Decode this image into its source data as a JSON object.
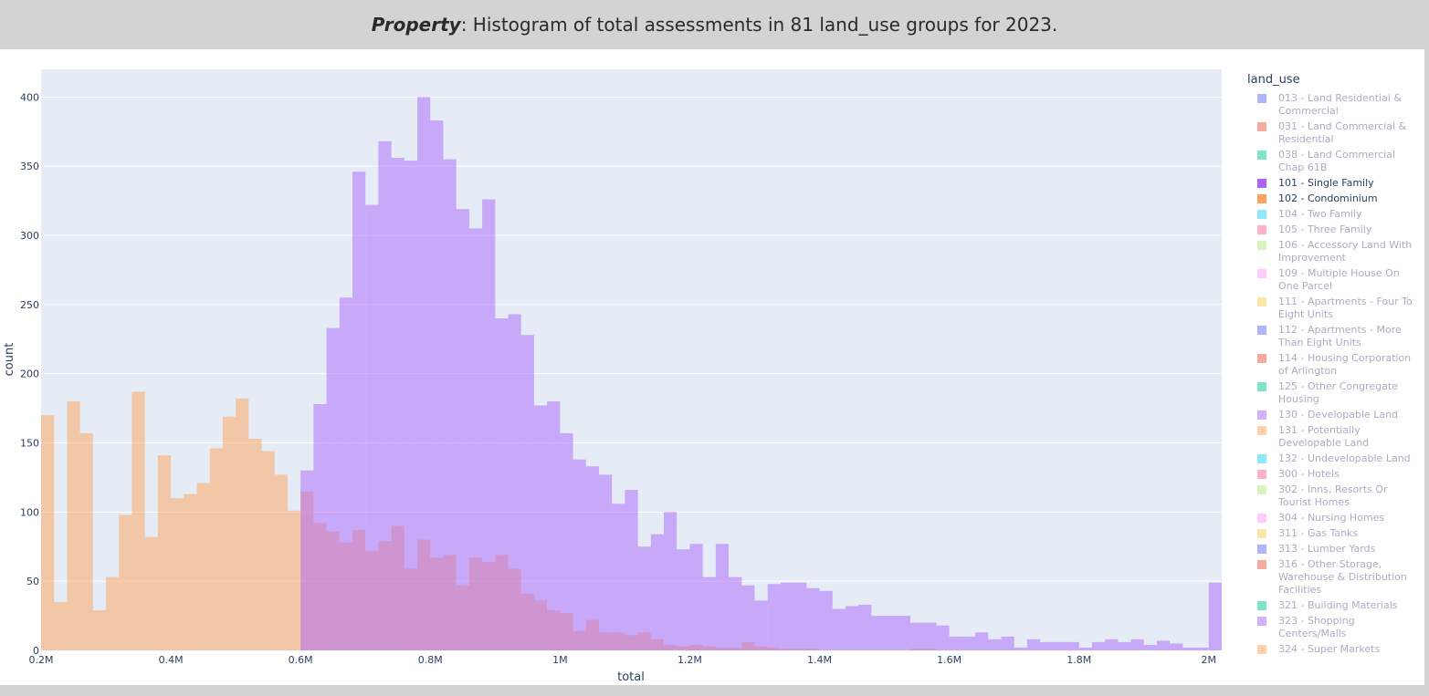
{
  "title": {
    "strong": "Property",
    "rest": ": Histogram of total assessments in 81 land_use groups for 2023."
  },
  "chart_data": {
    "type": "bar",
    "barmode": "overlay",
    "xlabel": "total",
    "ylabel": "count",
    "xlim": [
      200000,
      2020000
    ],
    "ylim": [
      0,
      420
    ],
    "bin_width": 20000,
    "x_ticks": [
      {
        "value": 200000,
        "label": "0.2M"
      },
      {
        "value": 400000,
        "label": "0.4M"
      },
      {
        "value": 600000,
        "label": "0.6M"
      },
      {
        "value": 800000,
        "label": "0.8M"
      },
      {
        "value": 1000000,
        "label": "1M"
      },
      {
        "value": 1200000,
        "label": "1.2M"
      },
      {
        "value": 1400000,
        "label": "1.4M"
      },
      {
        "value": 1600000,
        "label": "1.6M"
      },
      {
        "value": 1800000,
        "label": "1.8M"
      },
      {
        "value": 2000000,
        "label": "2M"
      }
    ],
    "y_ticks": [
      0,
      50,
      100,
      150,
      200,
      250,
      300,
      350,
      400
    ],
    "grid": true,
    "legend": {
      "title": "land_use",
      "placement": "right"
    },
    "series": [
      {
        "name": "101 - Single Family",
        "color": "#ab63fa",
        "bin_start": 600000,
        "values": [
          130,
          178,
          233,
          255,
          346,
          322,
          368,
          356,
          354,
          400,
          383,
          355,
          319,
          305,
          326,
          240,
          243,
          228,
          177,
          180,
          157,
          138,
          133,
          127,
          106,
          116,
          75,
          84,
          100,
          73,
          77,
          53,
          77,
          53,
          47,
          36,
          48,
          49,
          49,
          45,
          43,
          30,
          32,
          33,
          25,
          25,
          25,
          20,
          20,
          18,
          10,
          10,
          13,
          8,
          10,
          2,
          8,
          6,
          6,
          6,
          2,
          6,
          8,
          6,
          8,
          4,
          7,
          5,
          2,
          2,
          49
        ]
      },
      {
        "name": "102 - Condominium",
        "color": "#ffa15a",
        "bin_start": 200000,
        "values": [
          170,
          35,
          180,
          157,
          29,
          53,
          98,
          187,
          82,
          141,
          110,
          113,
          121,
          146,
          169,
          182,
          153,
          144,
          127,
          101,
          115,
          92,
          86,
          78,
          87,
          72,
          79,
          90,
          59,
          80,
          67,
          69,
          47,
          67,
          64,
          69,
          59,
          41,
          36,
          29,
          27,
          14,
          22,
          13,
          13,
          11,
          13,
          8,
          4,
          3,
          4,
          3,
          2,
          2,
          6,
          3,
          2,
          1,
          1,
          1,
          0,
          0,
          0,
          0,
          0,
          0,
          0,
          1,
          1
        ]
      }
    ]
  },
  "legend_items": [
    {
      "label": "013 - Land Residential & Commercial",
      "color": "#636efa",
      "active": false
    },
    {
      "label": "031 - Land Commercial & Residential",
      "color": "#ef553b",
      "active": false
    },
    {
      "label": "038 - Land Commercial Chap 61B",
      "color": "#00cc96",
      "active": false
    },
    {
      "label": "101 - Single Family",
      "color": "#ab63fa",
      "active": true
    },
    {
      "label": "102 - Condominium",
      "color": "#ffa15a",
      "active": true
    },
    {
      "label": "104 - Two Family",
      "color": "#19d3f3",
      "active": false
    },
    {
      "label": "105 - Three Family",
      "color": "#ff6692",
      "active": false
    },
    {
      "label": "106 - Accessory Land With Improvement",
      "color": "#b6e880",
      "active": false
    },
    {
      "label": "109 - Multiple House On One Parcel",
      "color": "#ff97ff",
      "active": false
    },
    {
      "label": "111 - Apartments - Four To Eight Units",
      "color": "#fecb52",
      "active": false
    },
    {
      "label": "112 - Apartments - More Than Eight Units",
      "color": "#636efa",
      "active": false
    },
    {
      "label": "114 - Housing Corporation of Arlington",
      "color": "#ef553b",
      "active": false
    },
    {
      "label": "125 - Other Congregate Housing",
      "color": "#00cc96",
      "active": false
    },
    {
      "label": "130 - Developable Land",
      "color": "#ab63fa",
      "active": false
    },
    {
      "label": "131 - Potentially Developable Land",
      "color": "#ffa15a",
      "active": false
    },
    {
      "label": "132 - Undevelopable Land",
      "color": "#19d3f3",
      "active": false
    },
    {
      "label": "300 - Hotels",
      "color": "#ff6692",
      "active": false
    },
    {
      "label": "302 - Inns, Resorts Or Tourist Homes",
      "color": "#b6e880",
      "active": false
    },
    {
      "label": "304 - Nursing Homes",
      "color": "#ff97ff",
      "active": false
    },
    {
      "label": "311 - Gas Tanks",
      "color": "#fecb52",
      "active": false
    },
    {
      "label": "313 - Lumber Yards",
      "color": "#636efa",
      "active": false
    },
    {
      "label": "316 - Other Storage, Warehouse & Distribution Facilities",
      "color": "#ef553b",
      "active": false
    },
    {
      "label": "321 - Building Materials",
      "color": "#00cc96",
      "active": false
    },
    {
      "label": "323 - Shopping Centers/Malls",
      "color": "#ab63fa",
      "active": false
    },
    {
      "label": "324 - Super Markets",
      "color": "#ffa15a",
      "active": false
    }
  ]
}
